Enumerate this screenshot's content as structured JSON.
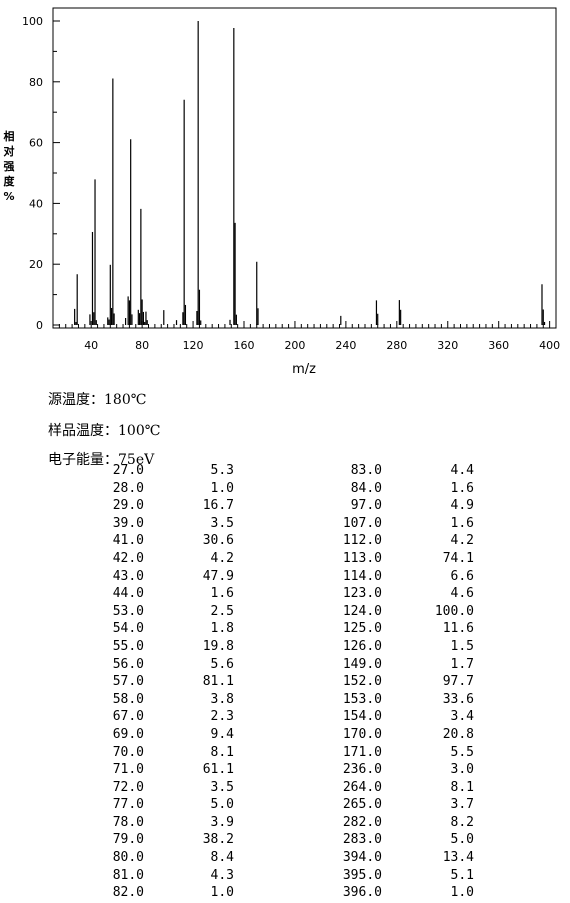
{
  "chart_data": {
    "type": "bar",
    "xlabel": "m/z",
    "ylabel": "相对强度%",
    "xlim": [
      10,
      405
    ],
    "ylim": [
      0,
      102
    ],
    "xticks": [
      40,
      80,
      120,
      160,
      200,
      240,
      280,
      320,
      360,
      400
    ],
    "yticks": [
      0,
      20,
      40,
      60,
      80,
      100
    ],
    "grid": false,
    "legend": "none",
    "bar_color": "#000000",
    "peaks": [
      [
        27.0,
        5.3
      ],
      [
        28.0,
        1.0
      ],
      [
        29.0,
        16.7
      ],
      [
        39.0,
        3.5
      ],
      [
        41.0,
        30.6
      ],
      [
        42.0,
        4.2
      ],
      [
        43.0,
        47.9
      ],
      [
        44.0,
        1.6
      ],
      [
        53.0,
        2.5
      ],
      [
        54.0,
        1.8
      ],
      [
        55.0,
        19.8
      ],
      [
        56.0,
        5.6
      ],
      [
        57.0,
        81.1
      ],
      [
        58.0,
        3.8
      ],
      [
        67.0,
        2.3
      ],
      [
        69.0,
        9.4
      ],
      [
        70.0,
        8.1
      ],
      [
        71.0,
        61.1
      ],
      [
        72.0,
        3.5
      ],
      [
        77.0,
        5.0
      ],
      [
        78.0,
        3.9
      ],
      [
        79.0,
        38.2
      ],
      [
        80.0,
        8.4
      ],
      [
        81.0,
        4.3
      ],
      [
        82.0,
        1.0
      ],
      [
        83.0,
        4.4
      ],
      [
        84.0,
        1.6
      ],
      [
        97.0,
        4.9
      ],
      [
        107.0,
        1.6
      ],
      [
        112.0,
        4.2
      ],
      [
        113.0,
        74.1
      ],
      [
        114.0,
        6.6
      ],
      [
        123.0,
        4.6
      ],
      [
        124.0,
        100.0
      ],
      [
        125.0,
        11.6
      ],
      [
        126.0,
        1.5
      ],
      [
        149.0,
        1.7
      ],
      [
        152.0,
        97.7
      ],
      [
        153.0,
        33.6
      ],
      [
        154.0,
        3.4
      ],
      [
        170.0,
        20.8
      ],
      [
        171.0,
        5.5
      ],
      [
        236.0,
        3.0
      ],
      [
        264.0,
        8.1
      ],
      [
        265.0,
        3.7
      ],
      [
        282.0,
        8.2
      ],
      [
        283.0,
        5.0
      ],
      [
        394.0,
        13.4
      ],
      [
        395.0,
        5.1
      ],
      [
        396.0,
        1.0
      ]
    ]
  },
  "info": {
    "source_temp": "源温度：180℃",
    "sample_temp": "样品温度：100℃",
    "electron_energy": "电子能量：75eV"
  },
  "table": {
    "rows": [
      [
        "27.0",
        "5.3",
        "83.0",
        "4.4"
      ],
      [
        "28.0",
        "1.0",
        "84.0",
        "1.6"
      ],
      [
        "29.0",
        "16.7",
        "97.0",
        "4.9"
      ],
      [
        "39.0",
        "3.5",
        "107.0",
        "1.6"
      ],
      [
        "41.0",
        "30.6",
        "112.0",
        "4.2"
      ],
      [
        "42.0",
        "4.2",
        "113.0",
        "74.1"
      ],
      [
        "43.0",
        "47.9",
        "114.0",
        "6.6"
      ],
      [
        "44.0",
        "1.6",
        "123.0",
        "4.6"
      ],
      [
        "53.0",
        "2.5",
        "124.0",
        "100.0"
      ],
      [
        "54.0",
        "1.8",
        "125.0",
        "11.6"
      ],
      [
        "55.0",
        "19.8",
        "126.0",
        "1.5"
      ],
      [
        "56.0",
        "5.6",
        "149.0",
        "1.7"
      ],
      [
        "57.0",
        "81.1",
        "152.0",
        "97.7"
      ],
      [
        "58.0",
        "3.8",
        "153.0",
        "33.6"
      ],
      [
        "67.0",
        "2.3",
        "154.0",
        "3.4"
      ],
      [
        "69.0",
        "9.4",
        "170.0",
        "20.8"
      ],
      [
        "70.0",
        "8.1",
        "171.0",
        "5.5"
      ],
      [
        "71.0",
        "61.1",
        "236.0",
        "3.0"
      ],
      [
        "72.0",
        "3.5",
        "264.0",
        "8.1"
      ],
      [
        "77.0",
        "5.0",
        "265.0",
        "3.7"
      ],
      [
        "78.0",
        "3.9",
        "282.0",
        "8.2"
      ],
      [
        "79.0",
        "38.2",
        "283.0",
        "5.0"
      ],
      [
        "80.0",
        "8.4",
        "394.0",
        "13.4"
      ],
      [
        "81.0",
        "4.3",
        "395.0",
        "5.1"
      ],
      [
        "82.0",
        "1.0",
        "396.0",
        "1.0"
      ]
    ]
  }
}
